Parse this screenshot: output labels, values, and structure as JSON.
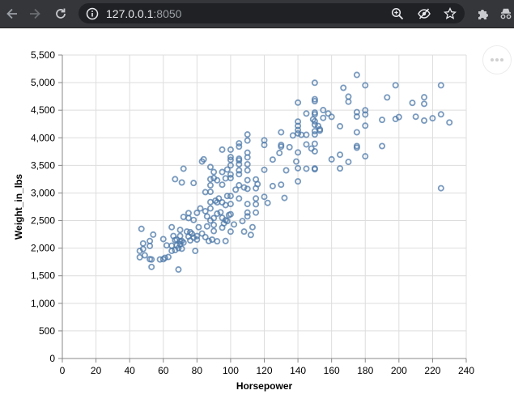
{
  "browser": {
    "url_host": "127.0.0.1",
    "url_port": ":8050",
    "icons": [
      "back-icon",
      "forward-icon",
      "reload-icon",
      "info-icon",
      "zoom-icon",
      "eye-off-icon",
      "star-icon",
      "puzzle-icon",
      "incognito-icon"
    ]
  },
  "chart_data": {
    "type": "scatter",
    "xlabel": "Horsepower",
    "ylabel": "Weight_in_lbs",
    "xlim": [
      0,
      240
    ],
    "ylim": [
      0,
      5500
    ],
    "xticks": [
      "0",
      "20",
      "40",
      "60",
      "80",
      "100",
      "120",
      "140",
      "160",
      "180",
      "200",
      "220",
      "240"
    ],
    "yticks": [
      "0",
      "500",
      "1,000",
      "1,500",
      "2,000",
      "2,500",
      "3,000",
      "3,500",
      "4,000",
      "4,500",
      "5,000",
      "5,500"
    ],
    "grid": true,
    "marker": "open-circle",
    "color": "#4c78a8",
    "points": [
      [
        46,
        1950
      ],
      [
        46,
        1835
      ],
      [
        47,
        2350
      ],
      [
        48,
        2085
      ],
      [
        48,
        1985
      ],
      [
        49,
        1870
      ],
      [
        52,
        2040
      ],
      [
        52,
        2130
      ],
      [
        52,
        1800
      ],
      [
        53,
        1660
      ],
      [
        53,
        1795
      ],
      [
        54,
        2245
      ],
      [
        58,
        1795
      ],
      [
        60,
        1800
      ],
      [
        60,
        2164
      ],
      [
        61,
        1825
      ],
      [
        62,
        2050
      ],
      [
        63,
        1840
      ],
      [
        65,
        2045
      ],
      [
        65,
        1950
      ],
      [
        65,
        2380
      ],
      [
        66,
        2220
      ],
      [
        67,
        1965
      ],
      [
        67,
        2145
      ],
      [
        67,
        3250
      ],
      [
        68,
        2050
      ],
      [
        68,
        2155
      ],
      [
        69,
        1613
      ],
      [
        69,
        2000
      ],
      [
        70,
        2070
      ],
      [
        70,
        2120
      ],
      [
        70,
        2220
      ],
      [
        70,
        2330
      ],
      [
        71,
        1990
      ],
      [
        71,
        2130
      ],
      [
        71,
        3190
      ],
      [
        72,
        2100
      ],
      [
        72,
        2565
      ],
      [
        72,
        3440
      ],
      [
        74,
        2300
      ],
      [
        75,
        2210
      ],
      [
        75,
        2545
      ],
      [
        75,
        2635
      ],
      [
        76,
        2140
      ],
      [
        76,
        2290
      ],
      [
        77,
        2260
      ],
      [
        78,
        2190
      ],
      [
        78,
        2510
      ],
      [
        78,
        3180
      ],
      [
        79,
        1950
      ],
      [
        80,
        2155
      ],
      [
        80,
        2220
      ],
      [
        80,
        2640
      ],
      [
        81,
        2380
      ],
      [
        82,
        2720
      ],
      [
        83,
        2265
      ],
      [
        83,
        3570
      ],
      [
        84,
        3610
      ],
      [
        85,
        2200
      ],
      [
        85,
        2670
      ],
      [
        85,
        3015
      ],
      [
        86,
        2395
      ],
      [
        86,
        2575
      ],
      [
        87,
        2130
      ],
      [
        88,
        2500
      ],
      [
        88,
        2720
      ],
      [
        88,
        2835
      ],
      [
        88,
        3020
      ],
      [
        88,
        3140
      ],
      [
        88,
        3250
      ],
      [
        88,
        3470
      ],
      [
        89,
        2155
      ],
      [
        90,
        2310
      ],
      [
        90,
        2420
      ],
      [
        90,
        2545
      ],
      [
        90,
        3270
      ],
      [
        90,
        3380
      ],
      [
        91,
        2860
      ],
      [
        92,
        2124
      ],
      [
        92,
        2625
      ],
      [
        92,
        2830
      ],
      [
        92,
        3230
      ],
      [
        93,
        2900
      ],
      [
        94,
        2650
      ],
      [
        95,
        2372
      ],
      [
        95,
        2550
      ],
      [
        95,
        2830
      ],
      [
        95,
        3150
      ],
      [
        95,
        3380
      ],
      [
        95,
        3785
      ],
      [
        96,
        2450
      ],
      [
        97,
        2130
      ],
      [
        97,
        2506
      ],
      [
        97,
        2780
      ],
      [
        97,
        3265
      ],
      [
        98,
        2490
      ],
      [
        98,
        2945
      ],
      [
        98,
        3425
      ],
      [
        99,
        2600
      ],
      [
        100,
        2300
      ],
      [
        100,
        2615
      ],
      [
        100,
        2800
      ],
      [
        100,
        2945
      ],
      [
        100,
        3270
      ],
      [
        100,
        3335
      ],
      [
        100,
        3500
      ],
      [
        100,
        3600
      ],
      [
        100,
        3650
      ],
      [
        100,
        3785
      ],
      [
        102,
        2430
      ],
      [
        103,
        3060
      ],
      [
        105,
        2900
      ],
      [
        105,
        3140
      ],
      [
        105,
        3340
      ],
      [
        105,
        3410
      ],
      [
        105,
        3520
      ],
      [
        105,
        3590
      ],
      [
        105,
        3620
      ],
      [
        105,
        3840
      ],
      [
        105,
        3900
      ],
      [
        107,
        2490
      ],
      [
        108,
        2300
      ],
      [
        108,
        3100
      ],
      [
        110,
        2575
      ],
      [
        110,
        2645
      ],
      [
        110,
        2800
      ],
      [
        110,
        3075
      ],
      [
        110,
        3233
      ],
      [
        110,
        3410
      ],
      [
        110,
        3520
      ],
      [
        110,
        3645
      ],
      [
        110,
        3730
      ],
      [
        110,
        3950
      ],
      [
        110,
        4060
      ],
      [
        112,
        2240
      ],
      [
        113,
        2380
      ],
      [
        115,
        2645
      ],
      [
        115,
        2795
      ],
      [
        115,
        2900
      ],
      [
        115,
        3085
      ],
      [
        115,
        3245
      ],
      [
        116,
        3160
      ],
      [
        120,
        2930
      ],
      [
        120,
        3420
      ],
      [
        120,
        3870
      ],
      [
        120,
        3955
      ],
      [
        122,
        2820
      ],
      [
        125,
        3125
      ],
      [
        125,
        3605
      ],
      [
        129,
        3725
      ],
      [
        130,
        3150
      ],
      [
        130,
        3840
      ],
      [
        130,
        3870
      ],
      [
        130,
        4100
      ],
      [
        132,
        2910
      ],
      [
        133,
        3410
      ],
      [
        135,
        3830
      ],
      [
        137,
        4042
      ],
      [
        139,
        3570
      ],
      [
        140,
        3210
      ],
      [
        140,
        3449
      ],
      [
        140,
        3735
      ],
      [
        140,
        4080
      ],
      [
        140,
        4141
      ],
      [
        140,
        4215
      ],
      [
        140,
        4294
      ],
      [
        140,
        4638
      ],
      [
        142,
        4054
      ],
      [
        145,
        3440
      ],
      [
        145,
        3880
      ],
      [
        145,
        4055
      ],
      [
        145,
        4440
      ],
      [
        148,
        3805
      ],
      [
        149,
        4335
      ],
      [
        150,
        3430
      ],
      [
        150,
        3445
      ],
      [
        150,
        3755
      ],
      [
        150,
        3892
      ],
      [
        150,
        4060
      ],
      [
        150,
        4120
      ],
      [
        150,
        4237
      ],
      [
        150,
        4300
      ],
      [
        150,
        4425
      ],
      [
        150,
        4457
      ],
      [
        150,
        4664
      ],
      [
        150,
        4699
      ],
      [
        150,
        4997
      ],
      [
        152,
        4215
      ],
      [
        153,
        4129
      ],
      [
        153,
        4154
      ],
      [
        155,
        4360
      ],
      [
        155,
        4502
      ],
      [
        158,
        4440
      ],
      [
        160,
        3609
      ],
      [
        160,
        4380
      ],
      [
        165,
        3445
      ],
      [
        165,
        3693
      ],
      [
        165,
        4209
      ],
      [
        167,
        4906
      ],
      [
        170,
        3563
      ],
      [
        170,
        4746
      ],
      [
        170,
        4654
      ],
      [
        175,
        3820
      ],
      [
        175,
        3850
      ],
      [
        175,
        4100
      ],
      [
        175,
        4385
      ],
      [
        175,
        4464
      ],
      [
        175,
        5140
      ],
      [
        180,
        3664
      ],
      [
        180,
        4220
      ],
      [
        180,
        4422
      ],
      [
        180,
        4499
      ],
      [
        180,
        4951
      ],
      [
        190,
        3850
      ],
      [
        190,
        4325
      ],
      [
        193,
        4732
      ],
      [
        198,
        4341
      ],
      [
        198,
        4952
      ],
      [
        200,
        4376
      ],
      [
        208,
        4633
      ],
      [
        210,
        4382
      ],
      [
        215,
        4312
      ],
      [
        215,
        4615
      ],
      [
        215,
        4735
      ],
      [
        220,
        4354
      ],
      [
        225,
        3086
      ],
      [
        225,
        4425
      ],
      [
        225,
        4951
      ],
      [
        230,
        4278
      ]
    ]
  }
}
